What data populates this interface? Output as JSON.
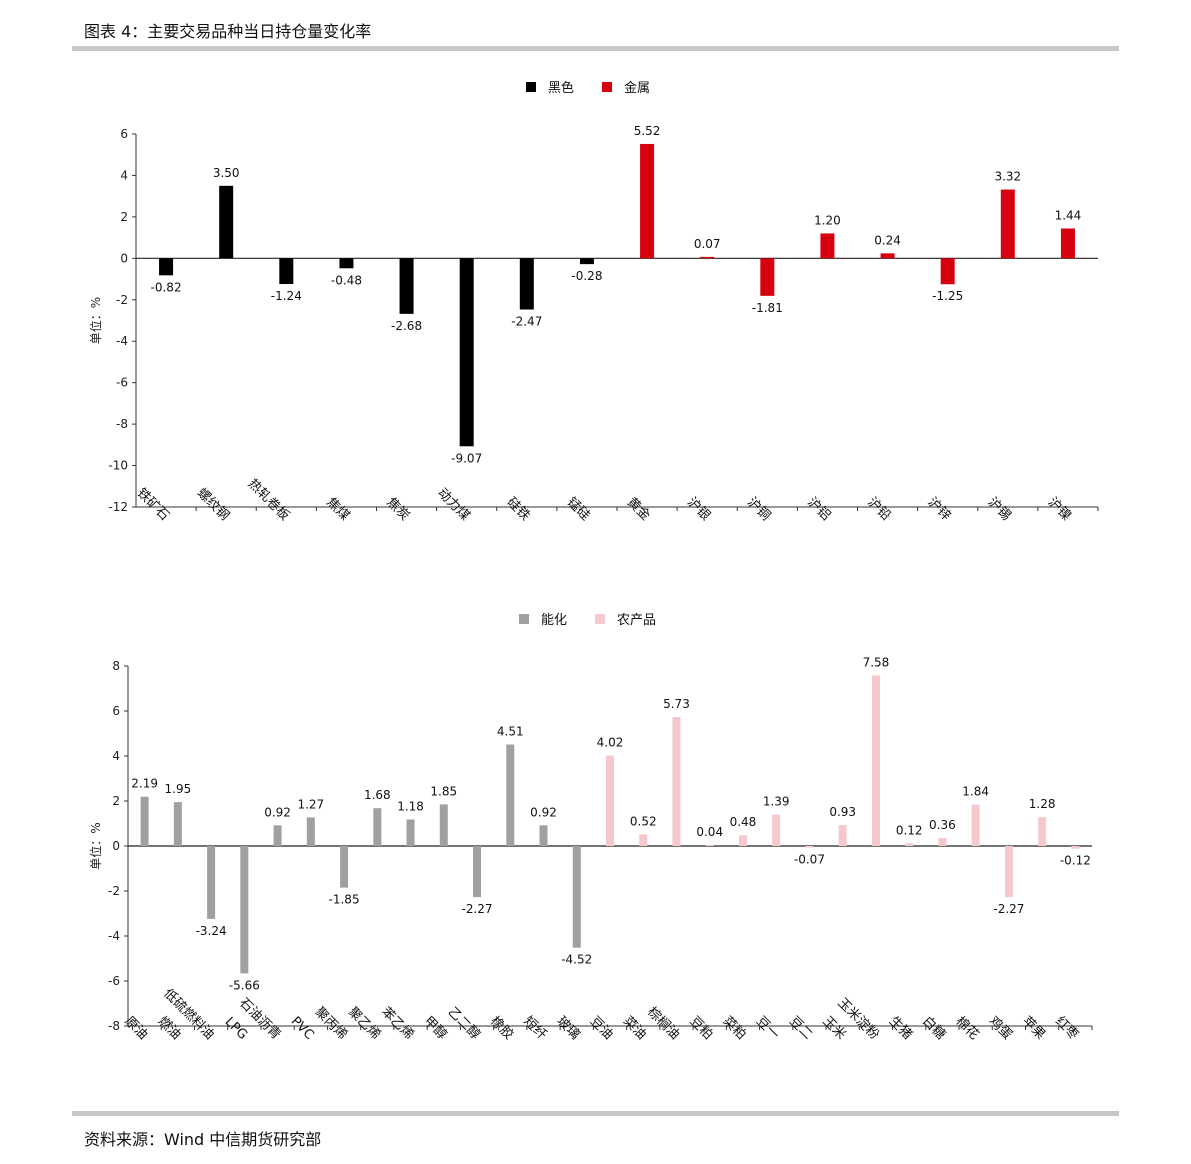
{
  "header": {
    "title": "图表 4：主要交易品种当日持仓量变化率"
  },
  "footer": {
    "source": "资料来源：Wind 中信期货研究部"
  },
  "chart_data": [
    {
      "type": "bar",
      "ylabel": "单位：%",
      "ylim": [
        -12,
        6
      ],
      "yticks": [
        6,
        4,
        2,
        0,
        -2,
        -4,
        -6,
        -8,
        -10,
        -12
      ],
      "grid": false,
      "legend_position": "top-center",
      "categories": [
        "铁矿石",
        "螺纹钢",
        "热轧卷板",
        "焦煤",
        "焦炭",
        "动力煤",
        "硅铁",
        "锰硅",
        "黄金",
        "沪银",
        "沪铜",
        "沪铝",
        "沪铅",
        "沪锌",
        "沪锡",
        "沪镍"
      ],
      "series": [
        {
          "name": "黑色",
          "color": "#000000",
          "values": [
            -0.82,
            3.5,
            -1.24,
            -0.48,
            -2.68,
            -9.07,
            -2.47,
            -0.28,
            null,
            null,
            null,
            null,
            null,
            null,
            null,
            null
          ]
        },
        {
          "name": "金属",
          "color": "#d7000f",
          "values": [
            null,
            null,
            null,
            null,
            null,
            null,
            null,
            null,
            5.52,
            0.07,
            -1.81,
            1.2,
            0.24,
            -1.25,
            3.32,
            1.44
          ]
        }
      ],
      "data_labels": [
        "-0.82",
        "3.50",
        "-1.24",
        "-0.48",
        "-2.68",
        "-9.07",
        "-2.47",
        "-0.28",
        "5.52",
        "0.07",
        "-1.81",
        "1.20",
        "0.24",
        "-1.25",
        "3.32",
        "1.44"
      ]
    },
    {
      "type": "bar",
      "ylabel": "单位：%",
      "ylim": [
        -8,
        8
      ],
      "yticks": [
        8,
        6,
        4,
        2,
        0,
        -2,
        -4,
        -6,
        -8
      ],
      "grid": false,
      "legend_position": "top-center",
      "categories": [
        "原油",
        "燃油",
        "低硫燃料油",
        "LPG",
        "石油沥青",
        "PVC",
        "聚丙烯",
        "聚乙烯",
        "苯乙烯",
        "甲醇",
        "乙二醇",
        "橡胶",
        "短纤",
        "玻璃",
        "豆油",
        "菜油",
        "棕榈油",
        "豆粕",
        "菜粕",
        "豆一",
        "豆二",
        "玉米",
        "玉米淀粉",
        "生猪",
        "白糖",
        "棉花",
        "鸡蛋",
        "苹果",
        "红枣"
      ],
      "series": [
        {
          "name": "能化",
          "color": "#a0a0a0",
          "values": [
            2.19,
            1.95,
            -3.24,
            -5.66,
            0.92,
            1.27,
            -1.85,
            1.68,
            1.18,
            1.85,
            -2.27,
            4.51,
            0.92,
            -4.52,
            null,
            null,
            null,
            null,
            null,
            null,
            null,
            null,
            null,
            null,
            null,
            null,
            null,
            null,
            null
          ]
        },
        {
          "name": "农产品",
          "color": "#f4c8cc",
          "values": [
            null,
            null,
            null,
            null,
            null,
            null,
            null,
            null,
            null,
            null,
            null,
            null,
            null,
            null,
            4.02,
            0.52,
            5.73,
            0.04,
            0.48,
            1.39,
            -0.07,
            0.93,
            7.58,
            0.12,
            0.36,
            1.84,
            -2.27,
            1.28,
            -0.12
          ]
        }
      ],
      "data_labels": [
        "2.19",
        "1.95",
        "-3.24",
        "-5.66",
        "0.92",
        "1.27",
        "-1.85",
        "1.68",
        "1.18",
        "1.85",
        "-2.27",
        "4.51",
        "0.92",
        "-4.52",
        "4.02",
        "0.52",
        "5.73",
        "0.04",
        "0.48",
        "1.39",
        "-0.07",
        "0.93",
        "7.58",
        "0.12",
        "0.36",
        "1.84",
        "-2.27",
        "1.28",
        "-0.12"
      ]
    }
  ]
}
